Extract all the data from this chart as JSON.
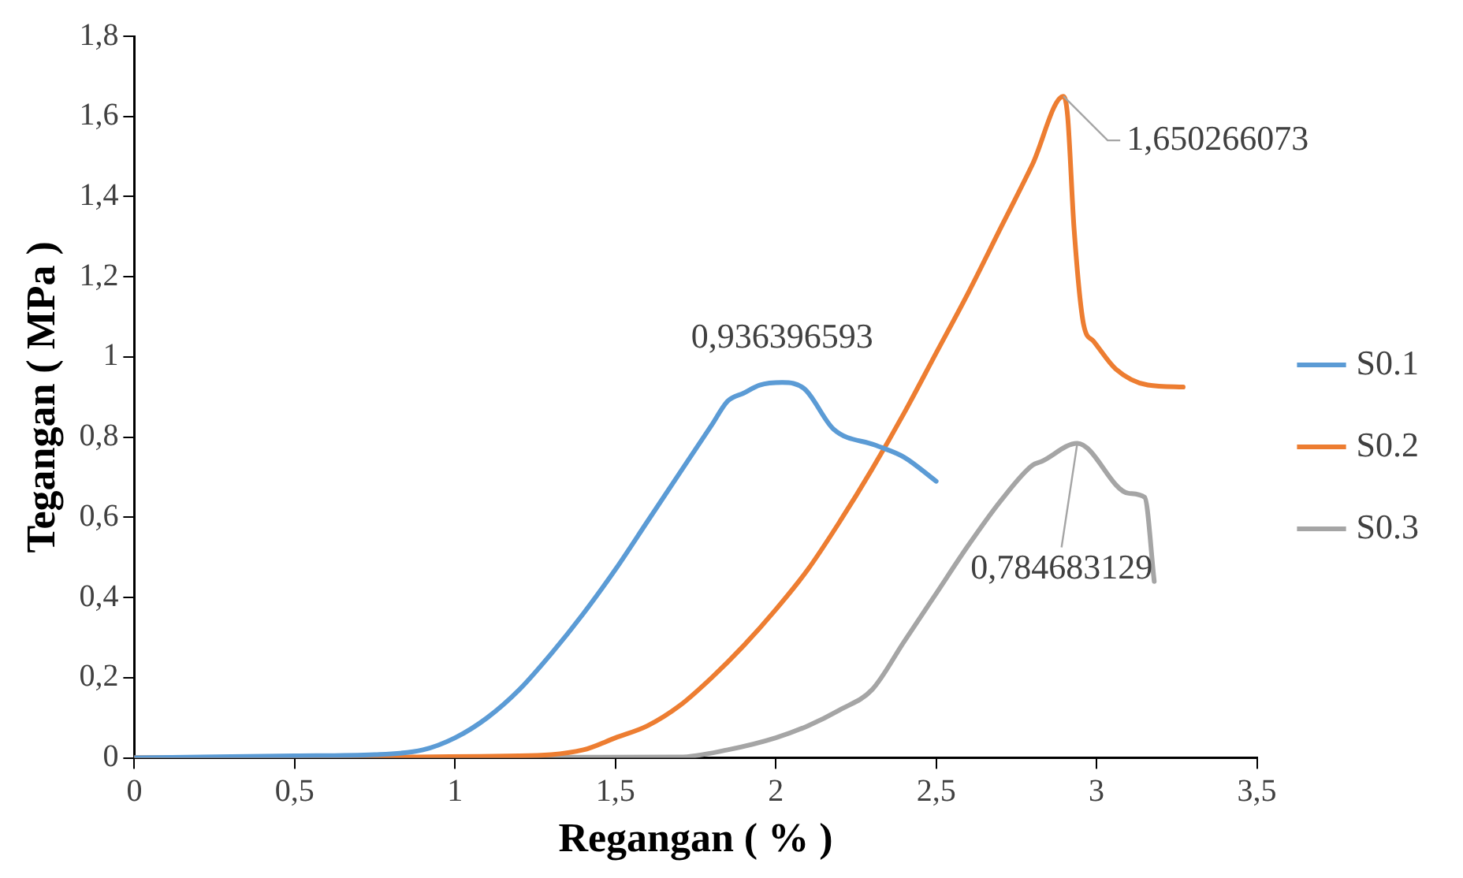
{
  "chart_data": {
    "type": "line",
    "xlabel": "Regangan ( % )",
    "ylabel": "Tegangan ( MPa )",
    "xlim": [
      0,
      3.5
    ],
    "ylim": [
      0,
      1.8
    ],
    "xticks": [
      0,
      {
        "value": 0.5,
        "label": "0,5"
      },
      1,
      {
        "value": 1.5,
        "label": "1,5"
      },
      2,
      {
        "value": 2.5,
        "label": "2,5"
      },
      3,
      {
        "value": 3.5,
        "label": "3,5"
      }
    ],
    "yticks": [
      0,
      {
        "value": 0.2,
        "label": "0,2"
      },
      {
        "value": 0.4,
        "label": "0,4"
      },
      {
        "value": 0.6,
        "label": "0,6"
      },
      {
        "value": 0.8,
        "label": "0,8"
      },
      1,
      {
        "value": 1.2,
        "label": "1,2"
      },
      {
        "value": 1.4,
        "label": "1,4"
      },
      {
        "value": 1.6,
        "label": "1,6"
      },
      {
        "value": 1.8,
        "label": "1,8"
      }
    ],
    "grid": false,
    "legend": "right",
    "marker": "none",
    "line_style": "solid",
    "series": [
      {
        "name": "S0.1",
        "color": "#5b9bd5",
        "x": [
          0,
          0.5,
          0.75,
          0.9,
          1.0,
          1.1,
          1.2,
          1.3,
          1.4,
          1.5,
          1.6,
          1.7,
          1.8,
          1.85,
          1.9,
          1.95,
          2.02,
          2.09,
          2.18,
          2.31,
          2.4,
          2.5
        ],
        "values": [
          0,
          0.005,
          0.008,
          0.02,
          0.05,
          0.1,
          0.17,
          0.26,
          0.36,
          0.47,
          0.59,
          0.71,
          0.83,
          0.89,
          0.91,
          0.93,
          0.936396593,
          0.92,
          0.82,
          0.78,
          0.75,
          0.69
        ]
      },
      {
        "name": "S0.2",
        "color": "#ed7d31",
        "x": [
          0,
          1.2,
          1.4,
          1.5,
          1.6,
          1.7,
          1.8,
          1.9,
          2.0,
          2.1,
          2.2,
          2.3,
          2.4,
          2.5,
          2.6,
          2.7,
          2.8,
          2.897,
          2.91,
          2.93,
          2.96,
          2.99,
          3.06,
          3.16,
          3.27
        ],
        "values": [
          0,
          0.005,
          0.02,
          0.05,
          0.08,
          0.13,
          0.2,
          0.28,
          0.37,
          0.47,
          0.59,
          0.72,
          0.86,
          1.01,
          1.16,
          1.32,
          1.48,
          1.650266073,
          1.6,
          1.32,
          1.08,
          1.04,
          0.97,
          0.93,
          0.925
        ]
      },
      {
        "name": "S0.3",
        "color": "#a5a5a5",
        "x": [
          0,
          1.7,
          1.85,
          2.0,
          2.1,
          2.2,
          2.3,
          2.4,
          2.5,
          2.6,
          2.7,
          2.8,
          2.83,
          2.94,
          3.1,
          3.15,
          3.18
        ],
        "values": [
          0,
          0.002,
          0.02,
          0.05,
          0.08,
          0.12,
          0.17,
          0.29,
          0.41,
          0.53,
          0.64,
          0.73,
          0.74,
          0.784683129,
          0.66,
          0.65,
          0.44
        ]
      }
    ],
    "annotations": [
      {
        "text": "0,936396593",
        "x": 2.02,
        "y": 0.936396593
      },
      {
        "text": "1,650266073",
        "x": 2.897,
        "y": 1.650266073
      },
      {
        "text": "0,784683129",
        "x": 2.94,
        "y": 0.784683129
      }
    ]
  }
}
